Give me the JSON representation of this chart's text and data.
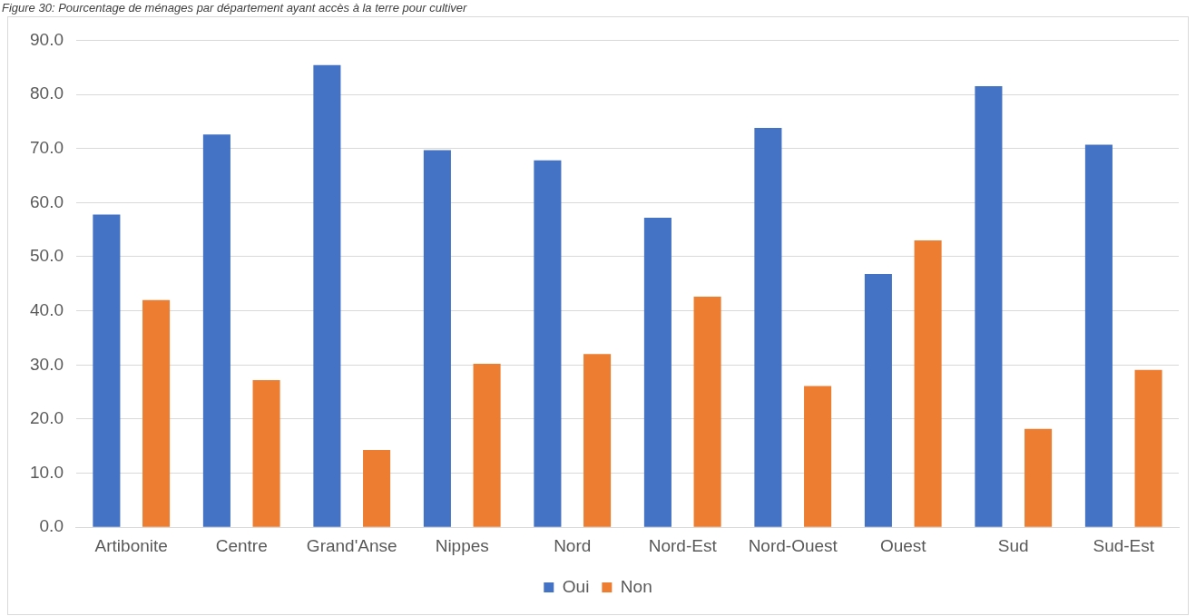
{
  "chart_data": {
    "type": "bar",
    "title": "Figure 30: Pourcentage de ménages par département ayant accès à la terre pour cultiver",
    "categories": [
      "Artibonite",
      "Centre",
      "Grand'Anse",
      "Nippes",
      "Nord",
      "Nord-Est",
      "Nord-Ouest",
      "Ouest",
      "Sud",
      "Sud-Est"
    ],
    "series": [
      {
        "name": "Oui",
        "color": "#4472c4",
        "values": [
          57.8,
          72.6,
          85.4,
          69.7,
          67.8,
          57.2,
          73.8,
          46.8,
          81.5,
          70.7
        ]
      },
      {
        "name": "Non",
        "color": "#ed7d31",
        "values": [
          42.0,
          27.2,
          14.3,
          30.2,
          32.0,
          42.6,
          26.1,
          53.0,
          18.2,
          29.1
        ]
      }
    ],
    "ylim": [
      0,
      90
    ],
    "yticks": [
      {
        "value": 0,
        "label": "0.0"
      },
      {
        "value": 10,
        "label": "10.0"
      },
      {
        "value": 20,
        "label": "20.0"
      },
      {
        "value": 30,
        "label": "30.0"
      },
      {
        "value": 40,
        "label": "40.0"
      },
      {
        "value": 50,
        "label": "50.0"
      },
      {
        "value": 60,
        "label": "60.0"
      },
      {
        "value": 70,
        "label": "70.0"
      },
      {
        "value": 80,
        "label": "80.0"
      },
      {
        "value": 90,
        "label": "90.0"
      }
    ],
    "grid": "y",
    "legend": "bottom"
  }
}
